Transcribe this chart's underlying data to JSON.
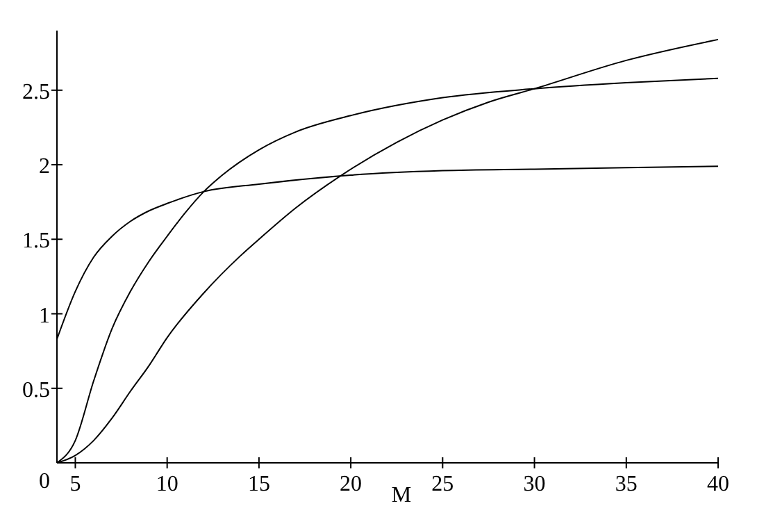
{
  "chart_data": {
    "type": "line",
    "xlabel": "M",
    "xlim": [
      4,
      40
    ],
    "ylim": [
      0,
      2.9
    ],
    "xticks": [
      5,
      10,
      15,
      20,
      25,
      30,
      35,
      40
    ],
    "yticks": [
      0,
      0.5,
      1,
      1.5,
      2,
      2.5
    ],
    "marker": "none",
    "line_style": "solid",
    "series": [
      {
        "color": "#000000",
        "x": [
          4,
          5,
          6,
          7,
          8,
          9,
          10,
          12,
          15,
          20,
          25,
          30,
          35,
          40
        ],
        "values": [
          0.83,
          1.15,
          1.38,
          1.52,
          1.62,
          1.69,
          1.74,
          1.82,
          1.87,
          1.93,
          1.96,
          1.97,
          1.98,
          1.99
        ]
      },
      {
        "color": "#000000",
        "x": [
          4,
          5,
          6,
          7,
          8,
          9,
          10,
          11,
          12,
          13,
          15,
          17,
          20,
          25,
          30,
          35,
          40
        ],
        "values": [
          0,
          0.15,
          0.55,
          0.9,
          1.15,
          1.35,
          1.52,
          1.68,
          1.82,
          1.93,
          2.1,
          2.22,
          2.33,
          2.45,
          2.51,
          2.55,
          2.58
        ]
      },
      {
        "color": "#000000",
        "x": [
          4,
          5,
          6,
          7,
          8,
          9,
          10,
          12,
          14,
          15,
          17,
          19.5,
          22.5,
          25,
          27.5,
          30,
          35,
          40
        ],
        "values": [
          0,
          0.05,
          0.15,
          0.3,
          0.48,
          0.65,
          0.84,
          1.14,
          1.39,
          1.5,
          1.71,
          1.93,
          2.15,
          2.3,
          2.42,
          2.51,
          2.7,
          2.84
        ]
      }
    ]
  }
}
